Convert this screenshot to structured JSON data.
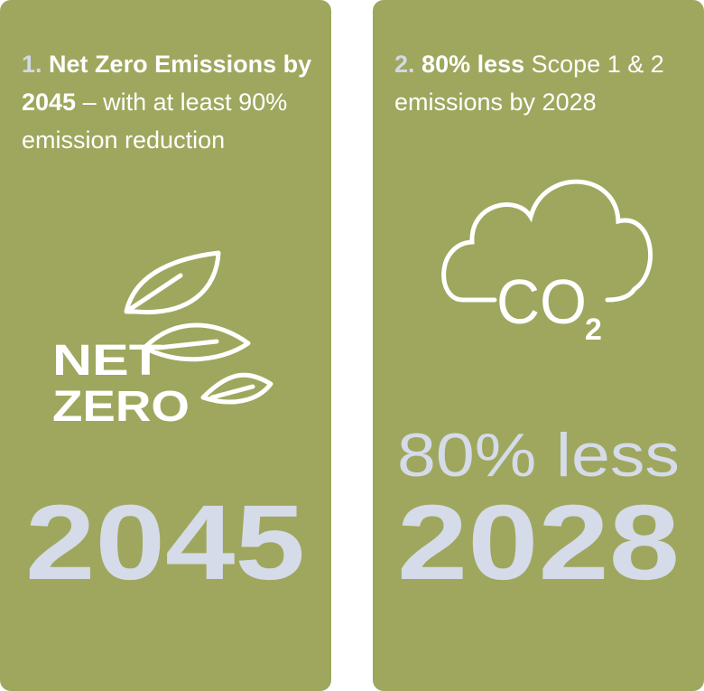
{
  "cards": [
    {
      "number": "1.",
      "title": "Net Zero Emissions by 2045",
      "text": "– with at least 90% emission reduction",
      "icon_lines": [
        "NET",
        "ZERO"
      ],
      "big_text": null,
      "big_number": "2045"
    },
    {
      "number": "2.",
      "title": "80% less",
      "text": "Scope 1 & 2 emissions by 2028",
      "icon_lines": [
        "CO",
        "2"
      ],
      "big_text": "80% less",
      "big_number": "2028"
    }
  ]
}
